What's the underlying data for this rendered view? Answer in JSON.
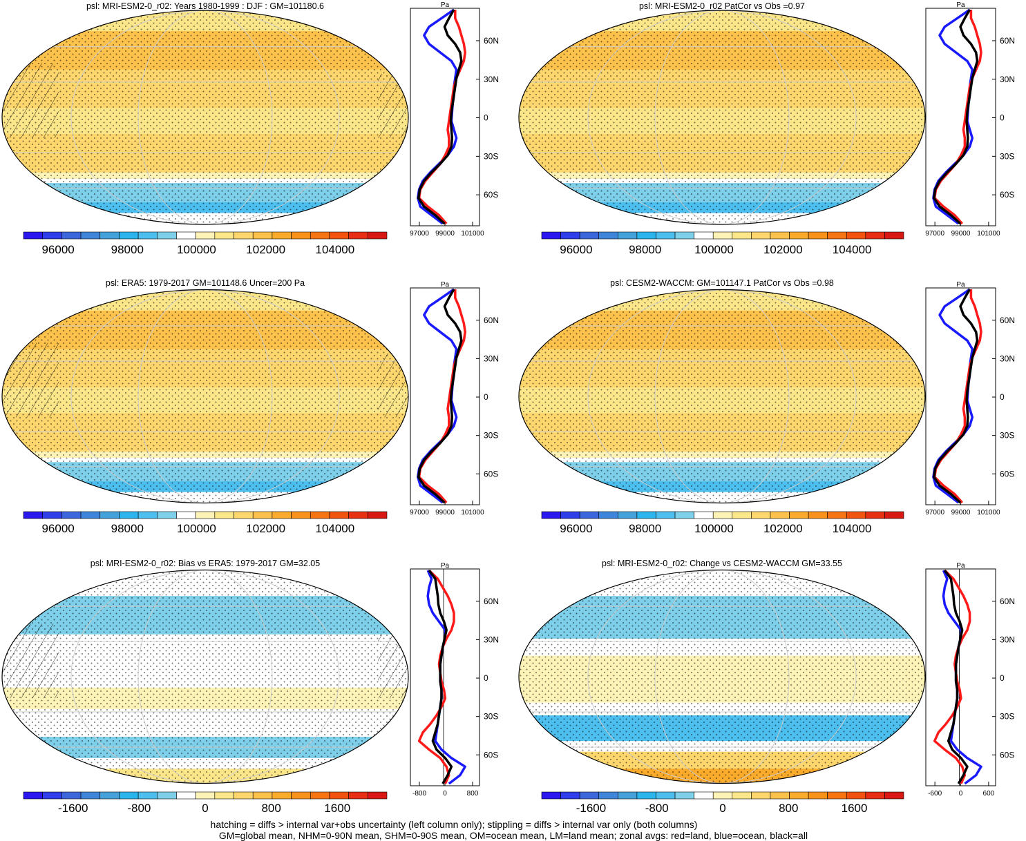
{
  "chart_data": {
    "type": "contour-map-panels",
    "variable": "psl",
    "units": "Pa",
    "panels": [
      {
        "id": "model-mean",
        "title": "psl: MRI-ESM2-0_r02: Years 1980-1999 : DJF : GM=101180.6",
        "colorbar_ticks": [
          "96000",
          "98000",
          "100000",
          "102000",
          "104000"
        ],
        "colorbar_range": [
          95000,
          105500
        ],
        "zonal_x_ticks": [
          "97000",
          "99000",
          "101000"
        ]
      },
      {
        "id": "model-patcor",
        "title": "psl: MRI-ESM2-0_r02 PatCor vs Obs =0.97",
        "colorbar_ticks": [
          "96000",
          "98000",
          "100000",
          "102000",
          "104000"
        ],
        "colorbar_range": [
          95000,
          105500
        ],
        "zonal_x_ticks": [
          "97000",
          "99000",
          "101000"
        ]
      },
      {
        "id": "obs-era5",
        "title": "psl: ERA5: 1979-2017 GM=101148.6 Uncer=200 Pa",
        "colorbar_ticks": [
          "96000",
          "98000",
          "100000",
          "102000",
          "104000"
        ],
        "colorbar_range": [
          95000,
          105500
        ],
        "zonal_x_ticks": [
          "97000",
          "99000",
          "101000"
        ]
      },
      {
        "id": "ref-cesm2",
        "title": "psl: CESM2-WACCM: GM=101147.1 PatCor vs Obs =0.98",
        "colorbar_ticks": [
          "96000",
          "98000",
          "100000",
          "102000",
          "104000"
        ],
        "colorbar_range": [
          95000,
          105500
        ],
        "zonal_x_ticks": [
          "97000",
          "99000",
          "101000"
        ]
      },
      {
        "id": "bias",
        "title": "psl: MRI-ESM2-0_r02: Bias vs ERA5: 1979-2017 GM=32.05",
        "colorbar_ticks": [
          "-1600",
          "-800",
          "0",
          "800",
          "1600"
        ],
        "colorbar_range": [
          -2200,
          2200
        ],
        "zonal_x_ticks": [
          "-800",
          "0",
          "800"
        ]
      },
      {
        "id": "change",
        "title": "psl: MRI-ESM2-0_r02: Change vs CESM2-WACCM GM=33.55",
        "colorbar_ticks": [
          "-1600",
          "-800",
          "0",
          "800",
          "1600"
        ],
        "colorbar_range": [
          -2200,
          2200
        ],
        "zonal_x_ticks": [
          "-600",
          "0",
          "600"
        ]
      }
    ],
    "latitude_ticks": [
      "60N",
      "30N",
      "0",
      "30S",
      "60S"
    ],
    "zonal_unit_label": "Pa",
    "legend": {
      "red": "land",
      "blue": "ocean",
      "black": "all"
    },
    "colorbar_palette": [
      "#2b18ee",
      "#2f3ee8",
      "#3b66dc",
      "#3f86da",
      "#44a1da",
      "#2cb4ec",
      "#4cbfef",
      "#7ecfe9",
      "#ffffff",
      "#fdf3b6",
      "#fce68a",
      "#fdd76e",
      "#fdc24c",
      "#fbab2b",
      "#f8921a",
      "#f67414",
      "#f2530f",
      "#e72f13",
      "#d81913"
    ],
    "zonal_line_colors": {
      "land": "#ff1a1a",
      "ocean": "#1a1aff",
      "all": "#000000"
    }
  },
  "footer": {
    "line1": "hatching = diffs > internal var+obs uncertainty (left column only); stippling = diffs > internal var only (both columns)",
    "line2": "GM=global mean, NHM=0-90N mean, SHM=0-90S mean, OM=ocean mean, LM=land mean; zonal avgs: red=land, blue=ocean, black=all"
  }
}
